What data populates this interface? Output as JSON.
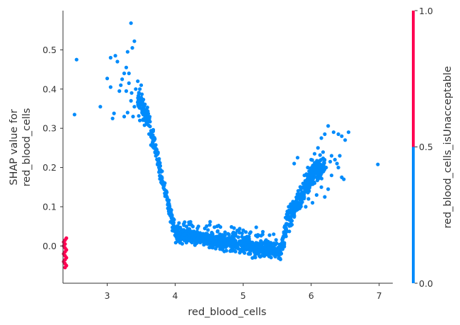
{
  "chart_data": {
    "type": "scatter",
    "title": "",
    "xlabel": "red_blood_cells",
    "ylabel_lines": [
      "SHAP value for",
      "red_blood_cells"
    ],
    "xlim": [
      2.35,
      7.2
    ],
    "ylim": [
      -0.095,
      0.6
    ],
    "xticks": [
      3,
      4,
      5,
      6,
      7
    ],
    "yticks": [
      0.0,
      0.1,
      0.2,
      0.3,
      0.4,
      0.5
    ],
    "xtick_labels": [
      "3",
      "4",
      "5",
      "6",
      "7"
    ],
    "ytick_labels": [
      "0.0",
      "0.1",
      "0.2",
      "0.3",
      "0.4",
      "0.5"
    ],
    "grid": false,
    "colorbar": {
      "label": "red_blood_cells_isUnacceptable",
      "ticks": [
        "0.0",
        "0.5",
        "1.0"
      ],
      "low_color": "#008bfb",
      "high_color": "#ff0052"
    },
    "series": [
      {
        "name": "isUnacceptable = 0",
        "color": "#008bfb",
        "points": [
          [
            2.55,
            0.475
          ],
          [
            2.52,
            0.335
          ],
          [
            2.9,
            0.355
          ],
          [
            3.0,
            0.427
          ],
          [
            3.05,
            0.48
          ],
          [
            3.05,
            0.405
          ],
          [
            3.08,
            0.325
          ],
          [
            3.1,
            0.338
          ],
          [
            3.12,
            0.485
          ],
          [
            3.15,
            0.47
          ],
          [
            3.18,
            0.395
          ],
          [
            3.2,
            0.41
          ],
          [
            3.25,
            0.44
          ],
          [
            3.28,
            0.455
          ],
          [
            3.3,
            0.495
          ],
          [
            3.32,
            0.44
          ],
          [
            3.35,
            0.568
          ],
          [
            3.37,
            0.505
          ],
          [
            3.4,
            0.522
          ],
          [
            3.25,
            0.33
          ],
          [
            3.3,
            0.34
          ],
          [
            3.35,
            0.37
          ],
          [
            3.38,
            0.33
          ],
          [
            3.4,
            0.355
          ],
          [
            3.22,
            0.425
          ],
          [
            3.32,
            0.415
          ],
          [
            3.42,
            0.4
          ],
          [
            3.45,
            0.42
          ],
          [
            3.48,
            0.4
          ],
          [
            3.5,
            0.41
          ],
          [
            3.28,
            0.395
          ],
          [
            3.36,
            0.39
          ],
          [
            6.98,
            0.208
          ],
          [
            6.55,
            0.29
          ],
          [
            6.5,
            0.27
          ],
          [
            6.45,
            0.28
          ],
          [
            6.4,
            0.285
          ],
          [
            6.33,
            0.29
          ],
          [
            6.25,
            0.306
          ],
          [
            6.2,
            0.285
          ],
          [
            6.15,
            0.275
          ],
          [
            6.1,
            0.25
          ],
          [
            6.05,
            0.235
          ],
          [
            6.0,
            0.22
          ],
          [
            5.95,
            0.2
          ],
          [
            5.9,
            0.18
          ],
          [
            5.8,
            0.225
          ],
          [
            5.75,
            0.21
          ],
          [
            6.48,
            0.17
          ],
          [
            6.4,
            0.2
          ],
          [
            6.35,
            0.22
          ],
          [
            6.3,
            0.23
          ],
          [
            6.28,
            0.215
          ],
          [
            6.22,
            0.2
          ],
          [
            6.18,
            0.19
          ],
          [
            6.12,
            0.2
          ],
          [
            6.45,
            0.175
          ],
          [
            6.25,
            0.145
          ],
          [
            6.2,
            0.125
          ],
          [
            6.15,
            0.15
          ],
          [
            6.08,
            0.13
          ],
          [
            6.02,
            0.11
          ],
          [
            5.96,
            0.12
          ],
          [
            5.92,
            0.1
          ],
          [
            6.3,
            0.18
          ],
          [
            6.38,
            0.21
          ],
          [
            6.42,
            0.23
          ],
          [
            6.1,
            0.17
          ],
          [
            6.05,
            0.16
          ]
        ]
      },
      {
        "name": "isUnacceptable = 1",
        "color": "#ff0052",
        "points": [
          [
            2.38,
            0.015
          ],
          [
            2.38,
            0.005
          ],
          [
            2.38,
            -0.005
          ],
          [
            2.38,
            -0.015
          ],
          [
            2.38,
            -0.025
          ],
          [
            2.38,
            -0.035
          ],
          [
            2.38,
            -0.045
          ],
          [
            2.38,
            -0.055
          ],
          [
            2.36,
            0.0
          ],
          [
            2.36,
            -0.02
          ],
          [
            2.36,
            -0.04
          ],
          [
            2.36,
            0.01
          ],
          [
            2.4,
            -0.01
          ],
          [
            2.4,
            -0.03
          ],
          [
            2.4,
            0.02
          ],
          [
            2.4,
            -0.05
          ]
        ]
      }
    ]
  }
}
